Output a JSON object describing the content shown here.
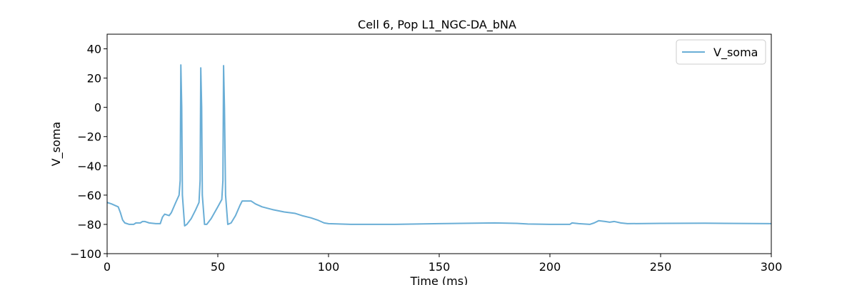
{
  "chart_data": {
    "type": "line",
    "title": "Cell 6, Pop L1_NGC-DA_bNA",
    "x_label": "Time (ms)",
    "y_label": "V_soma",
    "legend": "upper right",
    "xlim": [
      0,
      300
    ],
    "ylim": [
      -100,
      50
    ],
    "xticks": [
      0,
      50,
      100,
      150,
      200,
      250,
      300
    ],
    "yticks": [
      {
        "value": -100,
        "label": "−100"
      },
      {
        "value": -80,
        "label": "−80"
      },
      {
        "value": -60,
        "label": "−60"
      },
      {
        "value": -40,
        "label": "−40"
      },
      {
        "value": -20,
        "label": "−20"
      },
      0,
      20,
      40
    ],
    "x": [
      0,
      2,
      5,
      6,
      7,
      8,
      10,
      12,
      13,
      15,
      16,
      17,
      19,
      22,
      24,
      25,
      26,
      28,
      29,
      31,
      32.5,
      33,
      33.3,
      33.7,
      34,
      35,
      36,
      38,
      40,
      41.5,
      42,
      42.3,
      42.7,
      43,
      44,
      45,
      47,
      50,
      51.8,
      52.3,
      52.6,
      53,
      53.5,
      54.5,
      56,
      58,
      60,
      61,
      65,
      67,
      70,
      75,
      80,
      85,
      88,
      92,
      95,
      98,
      100,
      110,
      130,
      150,
      175,
      185,
      190,
      200,
      209,
      210,
      213,
      218,
      220,
      222,
      225,
      227,
      229,
      232,
      235,
      250,
      270,
      300
    ],
    "series": [
      {
        "name": "V_soma",
        "color": "#6aaed6",
        "values": [
          -65,
          -66,
          -68,
          -72,
          -77,
          -79,
          -80,
          -80,
          -79,
          -79,
          -78,
          -78,
          -79,
          -79.5,
          -79.5,
          -75,
          -73,
          -74,
          -72,
          -65,
          -60,
          -50,
          29,
          0,
          -60,
          -81,
          -80,
          -76,
          -70,
          -65,
          -50,
          27,
          0,
          -60,
          -80,
          -80,
          -76,
          -68,
          -63,
          -50,
          28.5,
          0,
          -60,
          -80,
          -79,
          -74,
          -67,
          -64,
          -64,
          -66,
          -68,
          -70,
          -71.5,
          -72.5,
          -74,
          -75.5,
          -77,
          -79,
          -79.5,
          -80,
          -80,
          -79.5,
          -79,
          -79.3,
          -79.7,
          -80,
          -80,
          -79,
          -79.5,
          -80,
          -79,
          -77.5,
          -78,
          -78.5,
          -78,
          -79,
          -79.5,
          -79.3,
          -79.2,
          -79.5
        ]
      }
    ]
  }
}
